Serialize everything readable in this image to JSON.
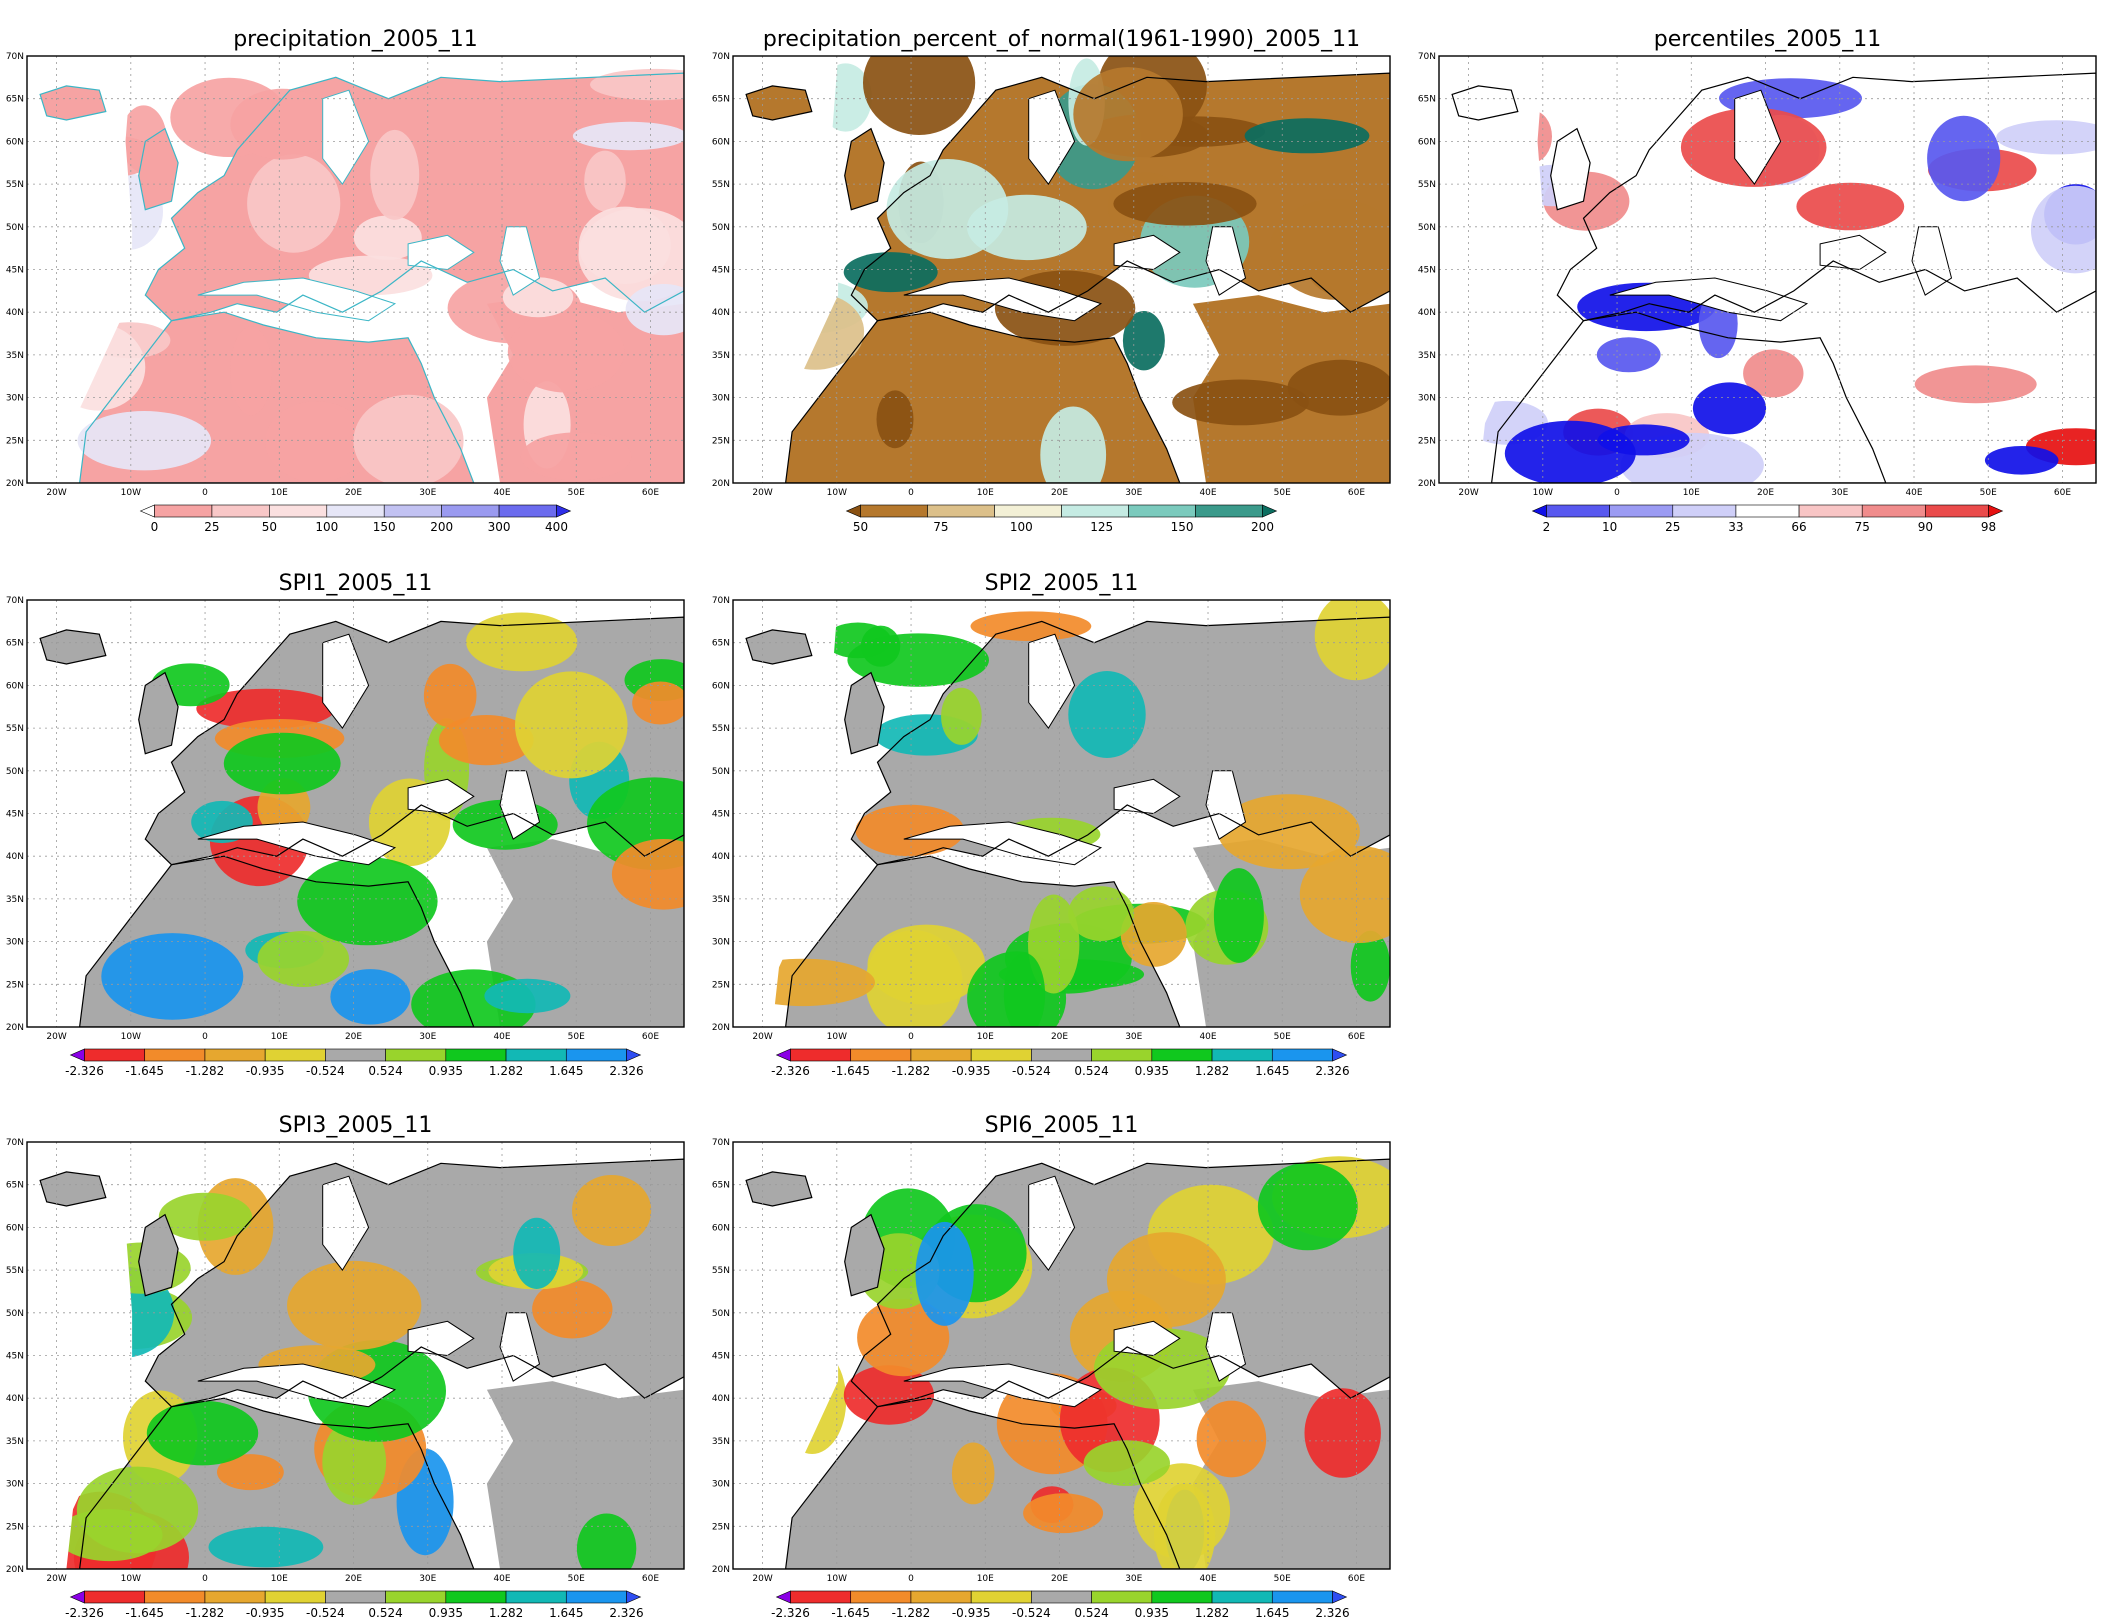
{
  "axes": {
    "lon_ticks": [
      "20W",
      "10W",
      "0",
      "10E",
      "20E",
      "30E",
      "40E",
      "50E",
      "60E"
    ],
    "lat_ticks": [
      "70N",
      "65N",
      "60N",
      "55N",
      "50N",
      "45N",
      "40N",
      "35N",
      "30N",
      "25N",
      "20N"
    ]
  },
  "palettes": {
    "spi": [
      "#8a00e6",
      "#ee2c2c",
      "#f28b2a",
      "#e6a72f",
      "#e0d233",
      "#a9a9a9",
      "#99d42c",
      "#10c81e",
      "#12b8b5",
      "#1a95ee",
      "#2f4ef2"
    ],
    "precip": [
      "#ffffff",
      "#f6a3a3",
      "#f8c7c7",
      "#fbe0e0",
      "#e6e6f7",
      "#c2c2f2",
      "#9a9af0",
      "#6b6bee",
      "#2e2ee8"
    ],
    "pon": [
      "#8a5112",
      "#b5782d",
      "#dcc08a",
      "#f3f0d6",
      "#c5ebe3",
      "#7bcabd",
      "#3b9a8b",
      "#0b6e60"
    ],
    "pct": [
      "#1010e8",
      "#5858ef",
      "#9b9bf3",
      "#cfcff8",
      "#ffffff",
      "#f8c5c5",
      "#f08c8c",
      "#ea4b4b",
      "#e61010"
    ]
  },
  "panels": [
    {
      "id": "precipitation",
      "title": "precipitation_2005_11",
      "palette": "precip",
      "cb_labels": [
        "0",
        "25",
        "50",
        "100",
        "150",
        "200",
        "300",
        "400"
      ]
    },
    {
      "id": "percent-normal",
      "title": "precipitation_percent_of_normal(1961-1990)_2005_11",
      "palette": "pon",
      "cb_labels": [
        "50",
        "75",
        "100",
        "125",
        "150",
        "200"
      ]
    },
    {
      "id": "percentiles",
      "title": "percentiles_2005_11",
      "palette": "pct",
      "cb_labels": [
        "2",
        "10",
        "25",
        "33",
        "66",
        "75",
        "90",
        "98"
      ]
    },
    {
      "id": "spi1",
      "title": "SPI1_2005_11",
      "palette": "spi",
      "cb_labels": [
        "-2.326",
        "-1.645",
        "-1.282",
        "-0.935",
        "-0.524",
        "0.524",
        "0.935",
        "1.282",
        "1.645",
        "2.326"
      ]
    },
    {
      "id": "spi2",
      "title": "SPI2_2005_11",
      "palette": "spi",
      "cb_labels": [
        "-2.326",
        "-1.645",
        "-1.282",
        "-0.935",
        "-0.524",
        "0.524",
        "0.935",
        "1.282",
        "1.645",
        "2.326"
      ]
    },
    {
      "id": "spi3",
      "title": "SPI3_2005_11",
      "palette": "spi",
      "cb_labels": [
        "-2.326",
        "-1.645",
        "-1.282",
        "-0.935",
        "-0.524",
        "0.524",
        "0.935",
        "1.282",
        "1.645",
        "2.326"
      ]
    },
    {
      "id": "spi6",
      "title": "SPI6_2005_11",
      "palette": "spi",
      "cb_labels": [
        "-2.326",
        "-1.645",
        "-1.282",
        "-0.935",
        "-0.524",
        "0.524",
        "0.935",
        "1.282",
        "1.645",
        "2.326"
      ]
    }
  ]
}
